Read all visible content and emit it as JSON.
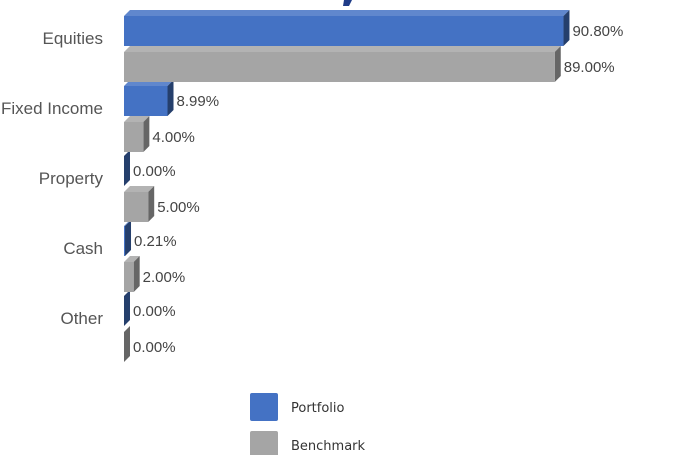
{
  "chart_data": {
    "type": "bar",
    "orientation": "horizontal",
    "categories": [
      "Equities",
      "Fixed Income",
      "Property",
      "Cash",
      "Other"
    ],
    "series": [
      {
        "name": "Portfolio",
        "color": "#4472C4",
        "values": [
          90.8,
          8.99,
          0.0,
          0.21,
          0.0
        ],
        "labels": [
          "90.80%",
          "8.99%",
          "0.00%",
          "0.21%",
          "0.00%"
        ]
      },
      {
        "name": "Benchmark",
        "color": "#A5A5A5",
        "values": [
          89.0,
          4.0,
          5.0,
          2.0,
          0.0
        ],
        "labels": [
          "89.00%",
          "4.00%",
          "5.00%",
          "2.00%",
          "0.00%"
        ]
      }
    ],
    "xlim": [
      0,
      100
    ],
    "grid": false,
    "legend_position": "bottom"
  }
}
